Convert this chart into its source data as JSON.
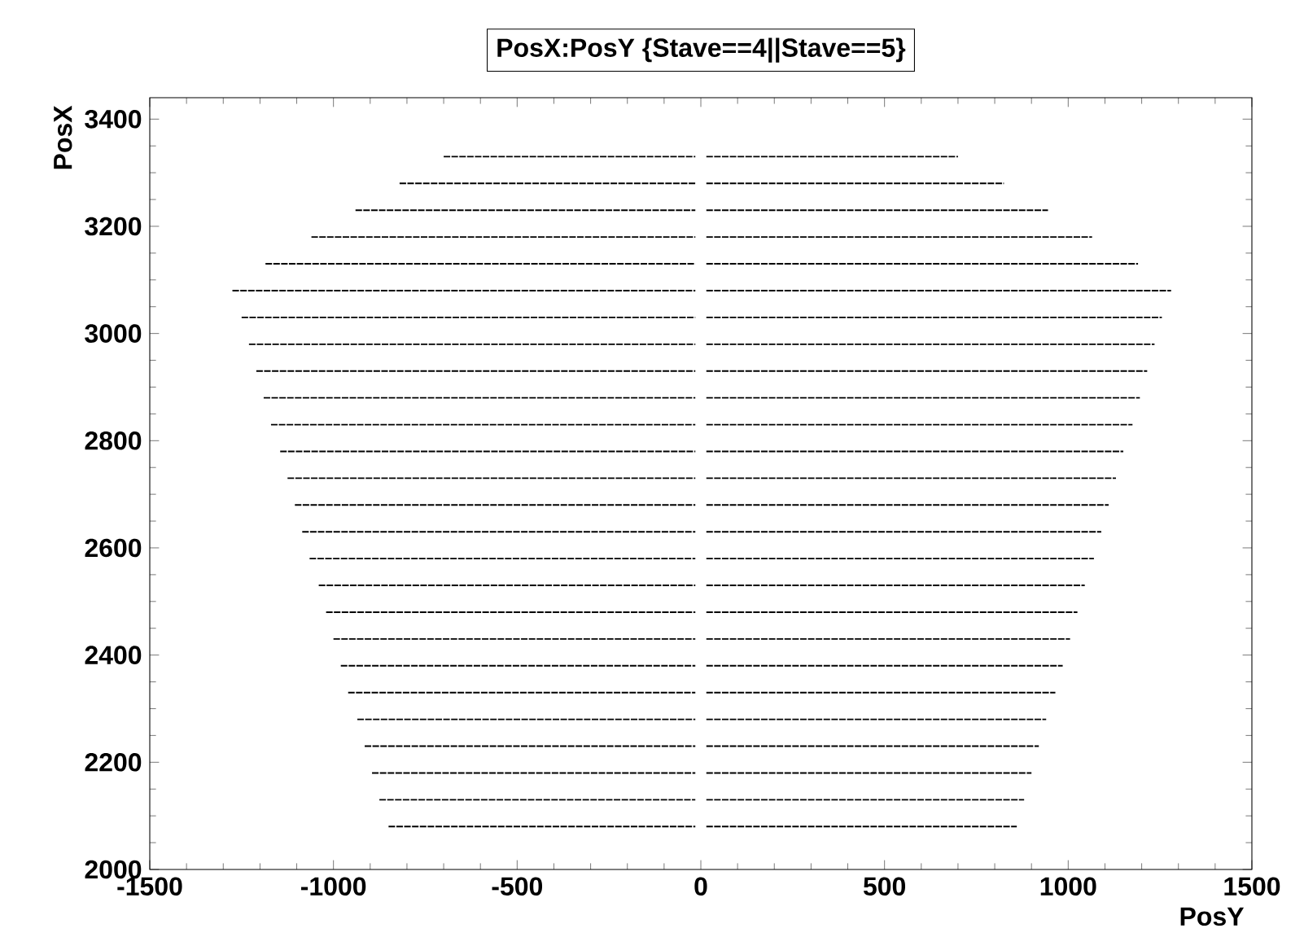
{
  "chart_data": {
    "type": "line",
    "title": "PosX:PosY {Stave==4||Stave==5}",
    "xlabel": "PosY",
    "ylabel": "PosX",
    "xlim": [
      -1500,
      1500
    ],
    "xticks": [
      -1500,
      -1000,
      -500,
      0,
      500,
      1000,
      1500
    ],
    "ylim": [
      2000,
      3440
    ],
    "yticks": [
      2000,
      2200,
      2400,
      2600,
      2800,
      3000,
      3200,
      3400
    ],
    "line_style": "dashed",
    "marker": "none",
    "series": [
      {
        "color": "#000000",
        "x": [
          -850,
          -15,
          null,
          -875,
          -15,
          null,
          -895,
          -15,
          null,
          -915,
          -15,
          null,
          -935,
          -15,
          null,
          -960,
          -15,
          null,
          -980,
          -15,
          null,
          -1000,
          -15,
          null,
          -1020,
          -15,
          null,
          -1040,
          -15,
          null,
          -1065,
          -15,
          null,
          -1085,
          -15,
          null,
          -1105,
          -15,
          null,
          -1125,
          -15,
          null,
          -1145,
          -15,
          null,
          -1170,
          -15,
          null,
          -1190,
          -15,
          null,
          -1210,
          -15,
          null,
          -1230,
          -15,
          null,
          -1250,
          -15,
          null,
          -1275,
          -15,
          null,
          -1185,
          -15,
          null,
          -1060,
          -15,
          null,
          -940,
          -15,
          null,
          -820,
          -15,
          null,
          -700,
          -15
        ],
        "values": [
          2080,
          2080,
          null,
          2130,
          2130,
          null,
          2180,
          2180,
          null,
          2230,
          2230,
          null,
          2280,
          2280,
          null,
          2330,
          2330,
          null,
          2380,
          2380,
          null,
          2430,
          2430,
          null,
          2480,
          2480,
          null,
          2530,
          2530,
          null,
          2580,
          2580,
          null,
          2630,
          2630,
          null,
          2680,
          2680,
          null,
          2730,
          2730,
          null,
          2780,
          2780,
          null,
          2830,
          2830,
          null,
          2880,
          2880,
          null,
          2930,
          2930,
          null,
          2980,
          2980,
          null,
          3030,
          3030,
          null,
          3080,
          3080,
          null,
          3130,
          3130,
          null,
          3180,
          3180,
          null,
          3230,
          3230,
          null,
          3280,
          3280,
          null,
          3330,
          3330
        ]
      },
      {
        "color": "#000000",
        "x": [
          15,
          860,
          null,
          15,
          880,
          null,
          15,
          900,
          null,
          15,
          920,
          null,
          15,
          940,
          null,
          15,
          965,
          null,
          15,
          985,
          null,
          15,
          1005,
          null,
          15,
          1025,
          null,
          15,
          1045,
          null,
          15,
          1070,
          null,
          15,
          1090,
          null,
          15,
          1110,
          null,
          15,
          1130,
          null,
          15,
          1150,
          null,
          15,
          1175,
          null,
          15,
          1195,
          null,
          15,
          1215,
          null,
          15,
          1235,
          null,
          15,
          1255,
          null,
          15,
          1280,
          null,
          15,
          1190,
          null,
          15,
          1065,
          null,
          15,
          945,
          null,
          15,
          825,
          null,
          15,
          700
        ],
        "values": [
          2080,
          2080,
          null,
          2130,
          2130,
          null,
          2180,
          2180,
          null,
          2230,
          2230,
          null,
          2280,
          2280,
          null,
          2330,
          2330,
          null,
          2380,
          2380,
          null,
          2430,
          2430,
          null,
          2480,
          2480,
          null,
          2530,
          2530,
          null,
          2580,
          2580,
          null,
          2630,
          2630,
          null,
          2680,
          2680,
          null,
          2730,
          2730,
          null,
          2780,
          2780,
          null,
          2830,
          2830,
          null,
          2880,
          2880,
          null,
          2930,
          2930,
          null,
          2980,
          2980,
          null,
          3030,
          3030,
          null,
          3080,
          3080,
          null,
          3130,
          3130,
          null,
          3180,
          3180,
          null,
          3230,
          3230,
          null,
          3280,
          3280,
          null,
          3330,
          3330
        ]
      }
    ]
  }
}
